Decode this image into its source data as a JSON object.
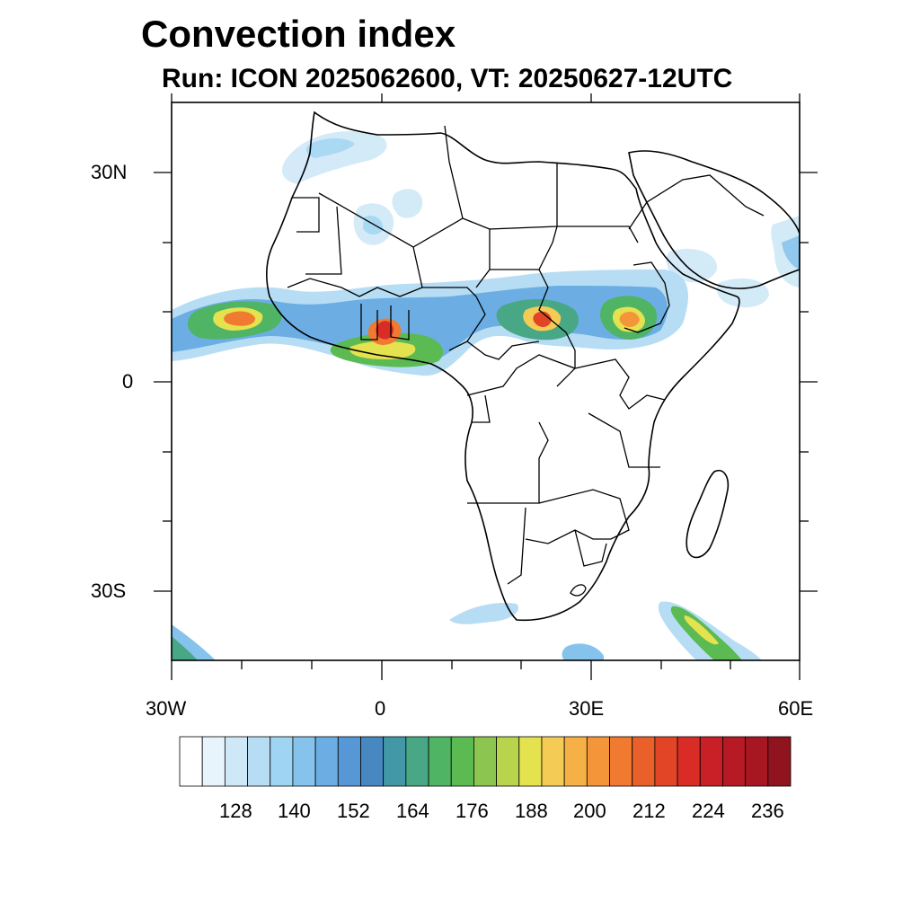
{
  "title": "Convection index",
  "subtitle": "Run: ICON 2025062600,  VT: 20250627-12UTC",
  "axes": {
    "lat_labels": [
      "30N",
      "0",
      "30S"
    ],
    "lon_labels": [
      "30W",
      "0",
      "30E",
      "60E"
    ]
  },
  "colorbar": {
    "labels": [
      "128",
      "140",
      "152",
      "164",
      "176",
      "188",
      "200",
      "212",
      "224",
      "236"
    ],
    "colors": [
      "#ffffff",
      "#e8f4fb",
      "#cfe8f7",
      "#b6ddf4",
      "#9fd4f2",
      "#86c3ec",
      "#6caee3",
      "#5698d5",
      "#4788c1",
      "#4298a6",
      "#48a785",
      "#4fb464",
      "#5cba53",
      "#8cc54f",
      "#b8d34c",
      "#e5e24f",
      "#f4cc55",
      "#f5b145",
      "#f5953a",
      "#f07a30",
      "#e9602a",
      "#e24526",
      "#d92c27",
      "#c91f27",
      "#b81a25",
      "#a61722",
      "#901320"
    ]
  },
  "legend_colors": {
    "land_border": "#000000",
    "ocean": "#ffffff"
  }
}
